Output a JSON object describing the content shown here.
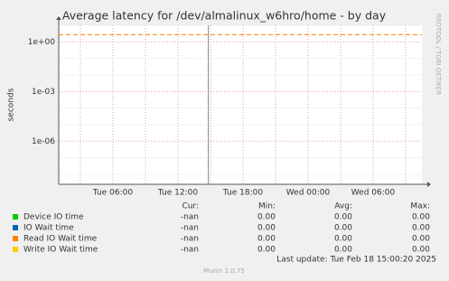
{
  "chart_data": {
    "type": "line",
    "title": "Average latency for /dev/almalinux_w6hro/home - by day",
    "y_label": "seconds",
    "log_y": true,
    "xlim": [
      1,
      34.5
    ],
    "xticks": [
      {
        "value": 6,
        "label": "Tue 06:00"
      },
      {
        "value": 12,
        "label": "Tue 12:00"
      },
      {
        "value": 18,
        "label": "Tue 18:00"
      },
      {
        "value": 24,
        "label": "Wed 00:00"
      },
      {
        "value": 30,
        "label": "Wed 06:00"
      }
    ],
    "x_minor_ticks": [
      3,
      9,
      15,
      21,
      27,
      33
    ],
    "ylim": [
      2.5e-09,
      10
    ],
    "yticks": [
      {
        "value": 1,
        "label": "1e+00"
      },
      {
        "value": 0.001,
        "label": "1e-03"
      },
      {
        "value": 1e-06,
        "label": "1e-06"
      }
    ],
    "y_minor_ticks": [
      10,
      0.1,
      0.01,
      0.0001,
      1e-05,
      1e-07,
      1e-08
    ],
    "grid": true,
    "reference_line": {
      "value": 2.7,
      "color": "#ff8000"
    },
    "marker_x": 14.8,
    "legend_table": {
      "headers": [
        "Cur:",
        "Min:",
        "Avg:",
        "Max:"
      ],
      "rows": [
        {
          "name": "Device IO time",
          "color": "#00cc00",
          "cells": [
            "-nan",
            "0.00",
            "0.00",
            "0.00"
          ]
        },
        {
          "name": "IO Wait time",
          "color": "#0066b3",
          "cells": [
            "-nan",
            "0.00",
            "0.00",
            "0.00"
          ]
        },
        {
          "name": "Read IO Wait time",
          "color": "#ff8000",
          "cells": [
            "-nan",
            "0.00",
            "0.00",
            "0.00"
          ]
        },
        {
          "name": "Write IO Wait time",
          "color": "#ffcc00",
          "cells": [
            "-nan",
            "0.00",
            "0.00",
            "0.00"
          ]
        }
      ]
    },
    "last_update": "Last update: Tue Feb 18 15:00:20 2025",
    "side_text": "RRDTOOL / TOBI OETIKER",
    "footer": "Munin 2.0.75"
  }
}
